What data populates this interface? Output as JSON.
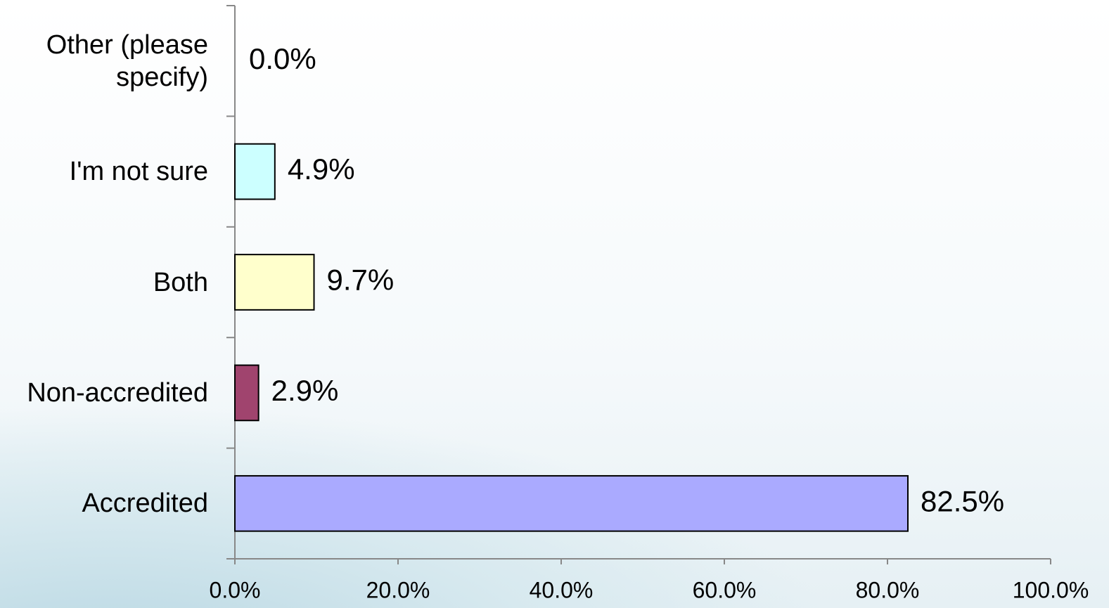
{
  "chart_data": {
    "type": "bar",
    "orientation": "horizontal",
    "categories": [
      "Other (please specify)",
      "I'm not sure",
      "Both",
      "Non-accredited",
      "Accredited"
    ],
    "values": [
      0.0,
      4.9,
      9.7,
      2.9,
      82.5
    ],
    "value_labels": [
      "0.0%",
      "4.9%",
      "9.7%",
      "2.9%",
      "82.5%"
    ],
    "colors": [
      "#ffffff",
      "#ccffff",
      "#ffffcc",
      "#a0446e",
      "#aaaaff"
    ],
    "xlim": [
      0,
      100
    ],
    "xticks": [
      {
        "value": 0,
        "label": "0.0%"
      },
      {
        "value": 20,
        "label": "20.0%"
      },
      {
        "value": 40,
        "label": "40.0%"
      },
      {
        "value": 60,
        "label": "60.0%"
      },
      {
        "value": 80,
        "label": "80.0%"
      },
      {
        "value": 100,
        "label": "100.0%"
      }
    ],
    "grid": false
  }
}
